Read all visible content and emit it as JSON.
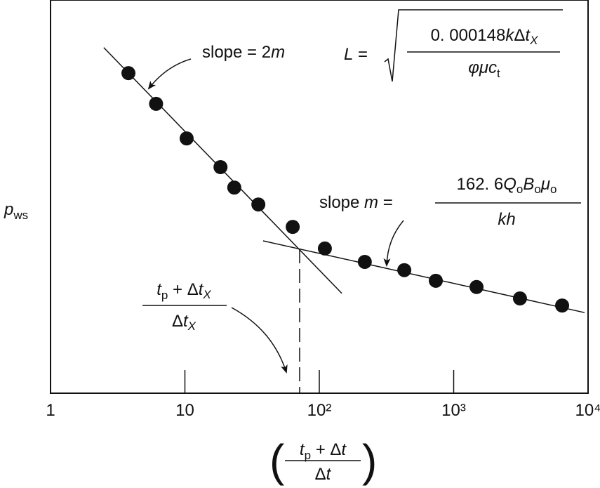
{
  "chart_data": {
    "type": "scatter",
    "y_label": [
      "p",
      "ws"
    ],
    "x_label": {
      "open": "(",
      "numerator": [
        "t",
        "p",
        " + Δ",
        "t"
      ],
      "denominator": [
        "Δ",
        "t"
      ],
      "close": ")"
    },
    "log_x": true,
    "xlim": [
      1,
      10000
    ],
    "xticks": [
      1,
      10,
      {
        "value": 100,
        "label": "10²"
      },
      {
        "value": 1000,
        "label": "10³"
      },
      {
        "value": 10000,
        "label": "10⁴"
      }
    ],
    "ylim": [
      0,
      100
    ],
    "color": "#111111",
    "x": [
      3.8,
      6.1,
      10.3,
      18.4,
      23.3,
      35.2,
      63.4,
      110,
      218,
      429,
      736,
      1479,
      3113,
      6412
    ],
    "values": [
      81.4,
      73.6,
      64.8,
      57.5,
      52.3,
      48.0,
      42.3,
      36.8,
      33.4,
      31.3,
      28.6,
      27.0,
      24.1,
      22.3
    ],
    "fit_lines": [
      {
        "x": [
          2.49,
          147
        ],
        "values": [
          87.9,
          25.4
        ]
      },
      {
        "x": [
          38.2,
          9420
        ],
        "values": [
          38.75,
          20.5
        ]
      }
    ],
    "intersection": {
      "x": 71.4,
      "value": 36.6
    },
    "annotations": {
      "slope_early": [
        "slope = 2",
        "m"
      ],
      "L_formula": {
        "lhs": [
          "L",
          " ="
        ],
        "numerator": [
          "0. 000148",
          "k",
          "Δ",
          "t",
          "X"
        ],
        "denominator": [
          "φμc",
          "t"
        ]
      },
      "slope_late": {
        "lhs": [
          "slope ",
          "m",
          " ="
        ],
        "numerator": [
          "162. 6",
          "Q",
          "o",
          "B",
          "o",
          "μ",
          "o"
        ],
        "denominator": [
          "kh"
        ]
      },
      "intersection_label": {
        "numerator": [
          "t",
          "p",
          " + Δ",
          "t",
          "X"
        ],
        "denominator": [
          "Δ",
          "t",
          "X"
        ]
      }
    }
  }
}
